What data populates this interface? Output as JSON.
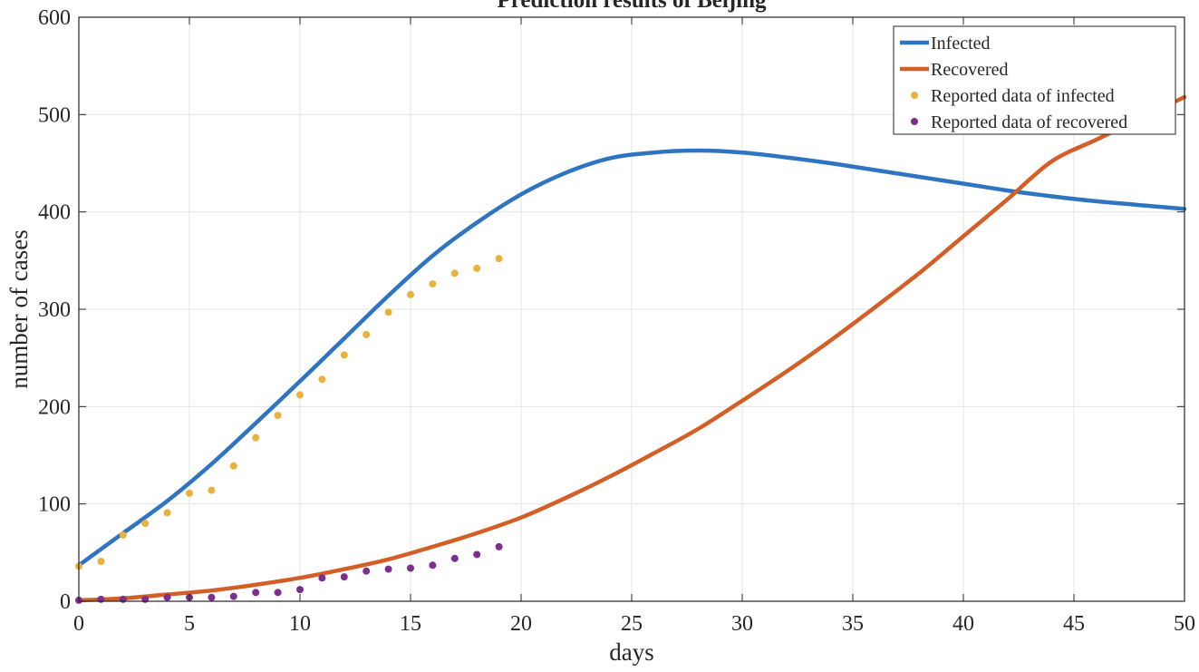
{
  "chart_data": {
    "type": "line",
    "title": "Prediction results of Beijing",
    "xlabel": "days",
    "ylabel": "number of cases",
    "xlim": [
      0,
      50
    ],
    "ylim": [
      0,
      600
    ],
    "xticks": [
      0,
      5,
      10,
      15,
      20,
      25,
      30,
      35,
      40,
      45,
      50
    ],
    "yticks": [
      0,
      100,
      200,
      300,
      400,
      500,
      600
    ],
    "grid": true,
    "legend_position": "top-right",
    "series": [
      {
        "name": "Infected",
        "kind": "line",
        "color": "#2e74c0",
        "x": [
          0,
          2,
          4,
          6,
          8,
          10,
          12,
          14,
          16,
          18,
          20,
          22,
          24,
          26,
          28,
          30,
          32,
          34,
          36,
          38,
          40,
          42,
          44,
          46,
          48,
          50
        ],
        "y": [
          37,
          70,
          103,
          141,
          183,
          226,
          270,
          314,
          355,
          389,
          418,
          440,
          455,
          461,
          463,
          461,
          456,
          450,
          443,
          436,
          429,
          422,
          416,
          411,
          407,
          403
        ]
      },
      {
        "name": "Recovered",
        "kind": "line",
        "color": "#d35f27",
        "x": [
          0,
          2,
          4,
          6,
          8,
          10,
          12,
          14,
          16,
          18,
          20,
          22,
          24,
          26,
          28,
          30,
          32,
          34,
          36,
          38,
          40,
          42,
          44,
          46,
          48,
          50
        ],
        "y": [
          1,
          3,
          7,
          11,
          17,
          24,
          33,
          43,
          56,
          70,
          86,
          106,
          128,
          152,
          177,
          206,
          236,
          268,
          302,
          337,
          375,
          413,
          452,
          474,
          496,
          518
        ]
      },
      {
        "name": "Reported data of infected",
        "kind": "points",
        "color": "#e9b23c",
        "x": [
          0,
          1,
          2,
          3,
          4,
          5,
          6,
          7,
          8,
          9,
          10,
          11,
          12,
          13,
          14,
          15,
          16,
          17,
          18,
          19
        ],
        "y": [
          36,
          41,
          68,
          80,
          91,
          111,
          114,
          139,
          168,
          191,
          212,
          228,
          253,
          274,
          297,
          315,
          326,
          337,
          342,
          352
        ]
      },
      {
        "name": "Reported data of recovered",
        "kind": "points",
        "color": "#7d2f8e",
        "x": [
          0,
          1,
          2,
          3,
          4,
          5,
          6,
          7,
          8,
          9,
          10,
          11,
          12,
          13,
          14,
          15,
          16,
          17,
          18,
          19
        ],
        "y": [
          1,
          2,
          2,
          2,
          4,
          4,
          4,
          5,
          9,
          9,
          12,
          24,
          25,
          31,
          33,
          34,
          37,
          44,
          48,
          56
        ]
      }
    ]
  }
}
